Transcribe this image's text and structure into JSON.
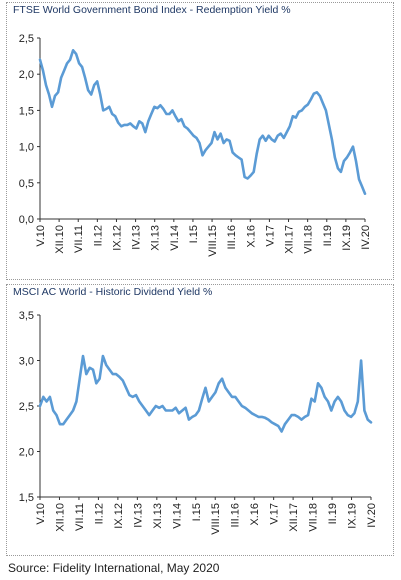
{
  "source": "Source: Fidelity International, May 2020",
  "line_color": "#5b9bd5",
  "chart_data": [
    {
      "type": "line",
      "title": "FTSE World Government Bond Index - Redemption Yield %",
      "ylim": [
        0,
        2.5
      ],
      "ytick_labels": [
        "0,0",
        "0,5",
        "1,0",
        "1,5",
        "2,0",
        "2,5"
      ],
      "xtick_labels": [
        "V.10",
        "XII.10",
        "VII.11",
        "II.12",
        "IX.12",
        "IV.13",
        "XI.13",
        "VI.14",
        "I.15",
        "VIII.15",
        "III.16",
        "X.16",
        "V.17",
        "XII.17",
        "VII.18",
        "II.19",
        "IX.19",
        "IV.20"
      ],
      "grid": false,
      "series": [
        {
          "values": [
            2.2,
            2.05,
            1.85,
            1.72,
            1.55,
            1.7,
            1.75,
            1.95,
            2.05,
            2.15,
            2.2,
            2.33,
            2.28,
            2.15,
            2.1,
            1.95,
            1.78,
            1.72,
            1.85,
            1.9,
            1.72,
            1.5,
            1.52,
            1.55,
            1.45,
            1.42,
            1.33,
            1.28,
            1.3,
            1.3,
            1.32,
            1.28,
            1.25,
            1.35,
            1.32,
            1.2,
            1.35,
            1.45,
            1.55,
            1.53,
            1.57,
            1.52,
            1.45,
            1.45,
            1.5,
            1.42,
            1.35,
            1.38,
            1.28,
            1.25,
            1.2,
            1.15,
            1.12,
            1.05,
            0.88,
            0.95,
            1.0,
            1.05,
            1.2,
            1.1,
            1.18,
            1.05,
            1.1,
            1.08,
            0.92,
            0.88,
            0.85,
            0.82,
            0.58,
            0.56,
            0.6,
            0.65,
            0.9,
            1.1,
            1.15,
            1.08,
            1.15,
            1.1,
            1.07,
            1.15,
            1.18,
            1.12,
            1.2,
            1.28,
            1.42,
            1.4,
            1.48,
            1.5,
            1.55,
            1.58,
            1.65,
            1.73,
            1.75,
            1.7,
            1.6,
            1.5,
            1.3,
            1.1,
            0.85,
            0.7,
            0.65,
            0.8,
            0.85,
            0.92,
            1.0,
            0.8,
            0.55,
            0.45,
            0.35
          ]
        }
      ]
    },
    {
      "type": "line",
      "title": "MSCI AC World - Historic Dividend Yield %",
      "ylim": [
        1.5,
        3.5
      ],
      "ytick_labels": [
        "1,5",
        "2,0",
        "2,5",
        "3,0",
        "3,5"
      ],
      "xtick_labels": [
        "V.10",
        "XII.10",
        "VII.11",
        "II.12",
        "IX.12",
        "IV.13",
        "XI.13",
        "VI.14",
        "I.15",
        "VIII.15",
        "III.16",
        "X.16",
        "V.17",
        "XII.17",
        "VII.18",
        "II.19",
        "IX.19",
        "IV.20"
      ],
      "grid": false,
      "series": [
        {
          "values": [
            2.5,
            2.6,
            2.55,
            2.6,
            2.45,
            2.4,
            2.3,
            2.3,
            2.35,
            2.4,
            2.45,
            2.55,
            2.8,
            3.05,
            2.85,
            2.92,
            2.9,
            2.75,
            2.8,
            3.05,
            2.95,
            2.9,
            2.85,
            2.85,
            2.82,
            2.78,
            2.7,
            2.62,
            2.6,
            2.62,
            2.55,
            2.5,
            2.45,
            2.4,
            2.45,
            2.5,
            2.48,
            2.5,
            2.45,
            2.45,
            2.45,
            2.48,
            2.42,
            2.45,
            2.48,
            2.35,
            2.38,
            2.4,
            2.45,
            2.58,
            2.7,
            2.55,
            2.6,
            2.65,
            2.75,
            2.8,
            2.7,
            2.65,
            2.6,
            2.6,
            2.55,
            2.5,
            2.48,
            2.45,
            2.42,
            2.4,
            2.38,
            2.38,
            2.37,
            2.35,
            2.32,
            2.3,
            2.28,
            2.22,
            2.3,
            2.35,
            2.4,
            2.4,
            2.38,
            2.35,
            2.38,
            2.4,
            2.58,
            2.55,
            2.75,
            2.7,
            2.6,
            2.55,
            2.45,
            2.55,
            2.6,
            2.55,
            2.45,
            2.4,
            2.38,
            2.42,
            2.55,
            3.0,
            2.45,
            2.35,
            2.32
          ]
        }
      ]
    }
  ]
}
